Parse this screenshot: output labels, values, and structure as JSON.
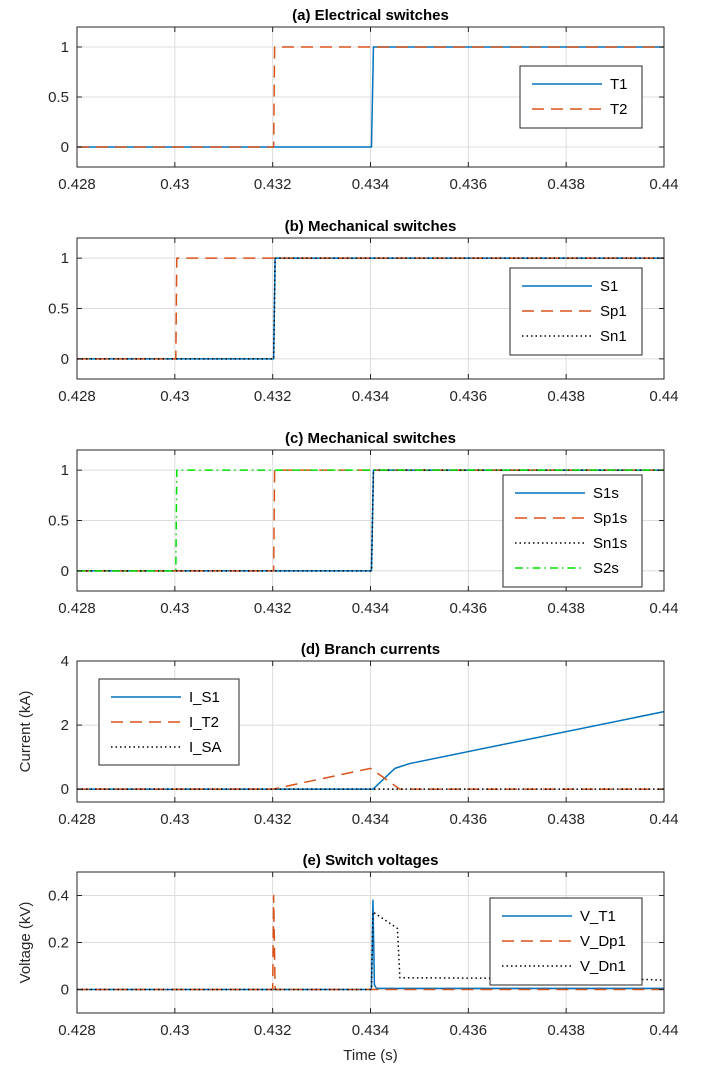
{
  "colors": {
    "solid_blue": "#0072BD",
    "dash_orange": "#D95319",
    "dot_black": "#000000",
    "dashdot_green": "#00E000"
  },
  "chart_data": [
    {
      "type": "line",
      "title": "(a) Electrical switches",
      "xlabel": "",
      "ylabel": "",
      "xlim": [
        0.428,
        0.44
      ],
      "ylim": [
        -0.2,
        1.2
      ],
      "xticks": [
        0.428,
        0.43,
        0.432,
        0.434,
        0.436,
        0.438,
        0.44
      ],
      "xtick_labels": [
        "0.428",
        "0.43",
        "0.432",
        "0.434",
        "0.436",
        "0.438",
        "0.44"
      ],
      "yticks": [
        0,
        0.5,
        1
      ],
      "ytick_labels": [
        "0",
        "0.5",
        "1"
      ],
      "grid": true,
      "legend_position": "right",
      "series": [
        {
          "name": "T1",
          "style": "solid",
          "color": "#0072BD",
          "x": [
            0.428,
            0.43402,
            0.43406,
            0.44
          ],
          "y": [
            0,
            0,
            1,
            1
          ]
        },
        {
          "name": "T2",
          "style": "dashed",
          "color": "#D95319",
          "x": [
            0.428,
            0.43202,
            0.43204,
            0.44
          ],
          "y": [
            0,
            0,
            1,
            1
          ]
        }
      ]
    },
    {
      "type": "line",
      "title": "(b) Mechanical switches",
      "xlabel": "",
      "ylabel": "",
      "xlim": [
        0.428,
        0.44
      ],
      "ylim": [
        -0.2,
        1.2
      ],
      "xticks": [
        0.428,
        0.43,
        0.432,
        0.434,
        0.436,
        0.438,
        0.44
      ],
      "xtick_labels": [
        "0.428",
        "0.43",
        "0.432",
        "0.434",
        "0.436",
        "0.438",
        "0.44"
      ],
      "yticks": [
        0,
        0.5,
        1
      ],
      "ytick_labels": [
        "0",
        "0.5",
        "1"
      ],
      "grid": true,
      "legend_position": "right",
      "series": [
        {
          "name": "S1",
          "style": "solid",
          "color": "#0072BD",
          "x": [
            0.428,
            0.43202,
            0.43205,
            0.44
          ],
          "y": [
            0,
            0,
            1,
            1
          ]
        },
        {
          "name": "Sp1",
          "style": "dashed",
          "color": "#D95319",
          "x": [
            0.428,
            0.43002,
            0.43004,
            0.44
          ],
          "y": [
            0,
            0,
            1,
            1
          ]
        },
        {
          "name": "Sn1",
          "style": "dotted",
          "color": "#000000",
          "x": [
            0.428,
            0.43202,
            0.43205,
            0.44
          ],
          "y": [
            0,
            0,
            1,
            1
          ]
        }
      ]
    },
    {
      "type": "line",
      "title": "(c) Mechanical switches",
      "xlabel": "",
      "ylabel": "",
      "xlim": [
        0.428,
        0.44
      ],
      "ylim": [
        -0.2,
        1.2
      ],
      "xticks": [
        0.428,
        0.43,
        0.432,
        0.434,
        0.436,
        0.438,
        0.44
      ],
      "xtick_labels": [
        "0.428",
        "0.43",
        "0.432",
        "0.434",
        "0.436",
        "0.438",
        "0.44"
      ],
      "yticks": [
        0,
        0.5,
        1
      ],
      "ytick_labels": [
        "0",
        "0.5",
        "1"
      ],
      "grid": true,
      "legend_position": "right",
      "series": [
        {
          "name": "S1s",
          "style": "solid",
          "color": "#0072BD",
          "x": [
            0.428,
            0.43402,
            0.43406,
            0.44
          ],
          "y": [
            0,
            0,
            1,
            1
          ]
        },
        {
          "name": "Sp1s",
          "style": "dashed",
          "color": "#D95319",
          "x": [
            0.428,
            0.43202,
            0.43204,
            0.44
          ],
          "y": [
            0,
            0,
            1,
            1
          ]
        },
        {
          "name": "Sn1s",
          "style": "dotted",
          "color": "#000000",
          "x": [
            0.428,
            0.43402,
            0.43406,
            0.44
          ],
          "y": [
            0,
            0,
            1,
            1
          ]
        },
        {
          "name": "S2s",
          "style": "dashdot",
          "color": "#00E000",
          "x": [
            0.428,
            0.43002,
            0.43004,
            0.44
          ],
          "y": [
            0,
            0,
            1,
            1
          ]
        }
      ]
    },
    {
      "type": "line",
      "title": "(d) Branch currents",
      "xlabel": "",
      "ylabel": "Current (kA)",
      "xlim": [
        0.428,
        0.44
      ],
      "ylim": [
        -0.4,
        4
      ],
      "xticks": [
        0.428,
        0.43,
        0.432,
        0.434,
        0.436,
        0.438,
        0.44
      ],
      "xtick_labels": [
        "0.428",
        "0.43",
        "0.432",
        "0.434",
        "0.436",
        "0.438",
        "0.44"
      ],
      "yticks": [
        0,
        2,
        4
      ],
      "ytick_labels": [
        "0",
        "2",
        "4"
      ],
      "grid": true,
      "legend_position": "left",
      "series": [
        {
          "name": "I_S1",
          "style": "solid",
          "color": "#0072BD",
          "x": [
            0.428,
            0.43405,
            0.4345,
            0.4348,
            0.44
          ],
          "y": [
            0,
            0,
            0.65,
            0.8,
            2.42
          ]
        },
        {
          "name": "I_T2",
          "style": "dashed",
          "color": "#D95319",
          "x": [
            0.428,
            0.432,
            0.434,
            0.43405,
            0.4346,
            0.44
          ],
          "y": [
            0,
            0,
            0.65,
            0.6,
            0,
            0
          ]
        },
        {
          "name": "I_SA",
          "style": "dotted",
          "color": "#000000",
          "x": [
            0.428,
            0.44
          ],
          "y": [
            0,
            0
          ]
        }
      ]
    },
    {
      "type": "line",
      "title": "(e) Switch voltages",
      "xlabel": "Time (s)",
      "ylabel": "Voltage (kV)",
      "xlim": [
        0.428,
        0.44
      ],
      "ylim": [
        -0.1,
        0.5
      ],
      "xticks": [
        0.428,
        0.43,
        0.432,
        0.434,
        0.436,
        0.438,
        0.44
      ],
      "xtick_labels": [
        "0.428",
        "0.43",
        "0.432",
        "0.434",
        "0.436",
        "0.438",
        "0.44"
      ],
      "yticks": [
        0,
        0.2,
        0.4
      ],
      "ytick_labels": [
        "0",
        "0.2",
        "0.4"
      ],
      "grid": true,
      "legend_position": "top-right",
      "series": [
        {
          "name": "V_T1",
          "style": "solid",
          "color": "#0072BD",
          "x": [
            0.428,
            0.43402,
            0.43405,
            0.43408,
            0.43412,
            0.4345,
            0.44
          ],
          "y": [
            0,
            0,
            0.38,
            0.02,
            0.005,
            0.005,
            0.005
          ]
        },
        {
          "name": "V_Dp1",
          "style": "dashed",
          "color": "#D95319",
          "x": [
            0.428,
            0.432,
            0.43202,
            0.43205,
            0.44
          ],
          "y": [
            0,
            0,
            0.4,
            0,
            0
          ]
        },
        {
          "name": "V_Dn1",
          "style": "dotted",
          "color": "#000000",
          "x": [
            0.428,
            0.43402,
            0.43405,
            0.43455,
            0.4346,
            0.4365,
            0.4385,
            0.44
          ],
          "y": [
            0,
            0,
            0.33,
            0.26,
            0.05,
            0.048,
            0.05,
            0.04
          ]
        }
      ]
    }
  ]
}
